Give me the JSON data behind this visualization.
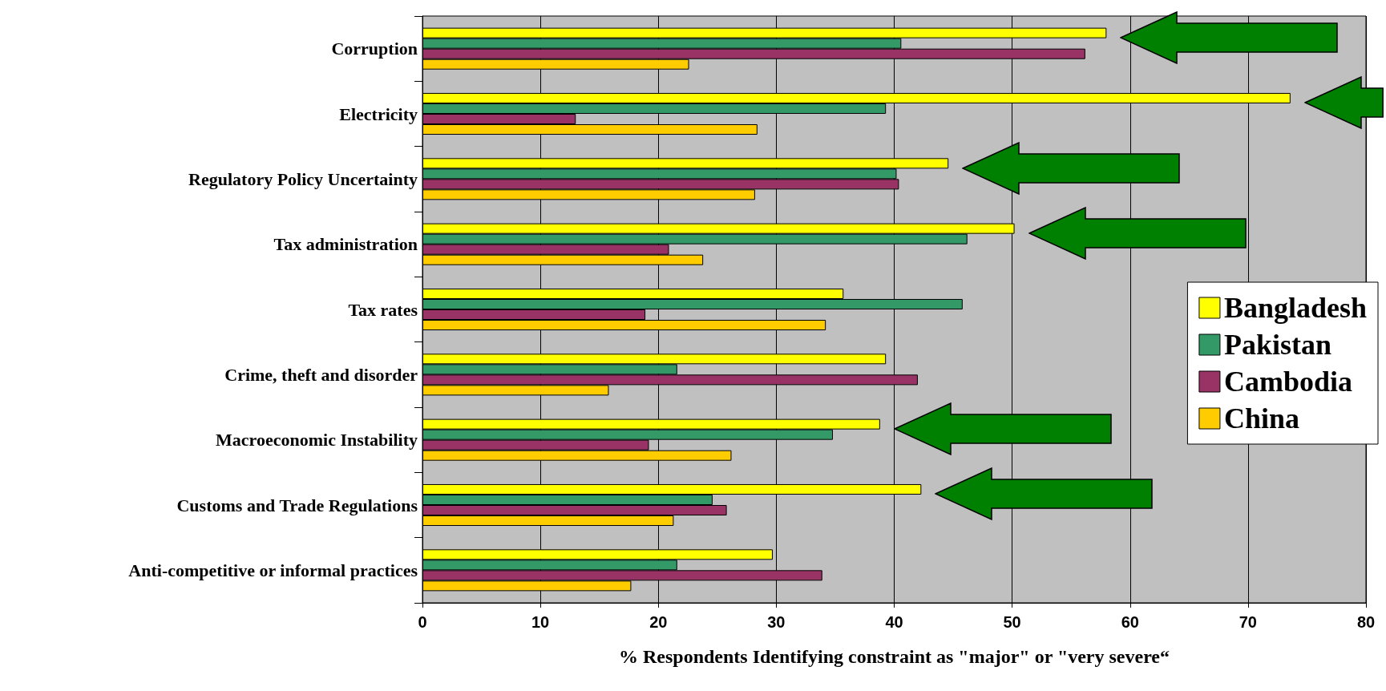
{
  "chart_data": {
    "type": "bar",
    "orientation": "horizontal",
    "xlabel": "% Respondents Identifying constraint as \"major\" or \"very severe“",
    "categories": [
      "Corruption",
      "Electricity",
      "Regulatory Policy Uncertainty",
      "Tax administration",
      "Tax rates",
      "Crime, theft and disorder",
      "Macroeconomic Instability",
      "Customs and Trade Regulations",
      "Anti-competitive or informal practices"
    ],
    "series": [
      {
        "name": "Bangladesh",
        "color": "#ffff00",
        "values": [
          58,
          73.6,
          44.6,
          50.2,
          35.7,
          39.3,
          38.8,
          42.3,
          29.7
        ]
      },
      {
        "name": "Pakistan",
        "color": "#339966",
        "values": [
          40.6,
          39.3,
          40.2,
          46.2,
          45.8,
          21.6,
          34.8,
          24.6,
          21.6
        ]
      },
      {
        "name": "Cambodia",
        "color": "#993366",
        "values": [
          56.2,
          13,
          40.4,
          20.9,
          18.9,
          42,
          19.2,
          25.8,
          33.9
        ]
      },
      {
        "name": "China",
        "color": "#ffcc00",
        "values": [
          22.6,
          28.4,
          28.2,
          23.8,
          34.2,
          15.8,
          26.2,
          21.3,
          17.7
        ]
      }
    ],
    "xlim": [
      0,
      80
    ],
    "xticks": [
      0,
      10,
      20,
      30,
      40,
      50,
      60,
      70,
      80
    ],
    "grid": "x",
    "legend": "right"
  }
}
